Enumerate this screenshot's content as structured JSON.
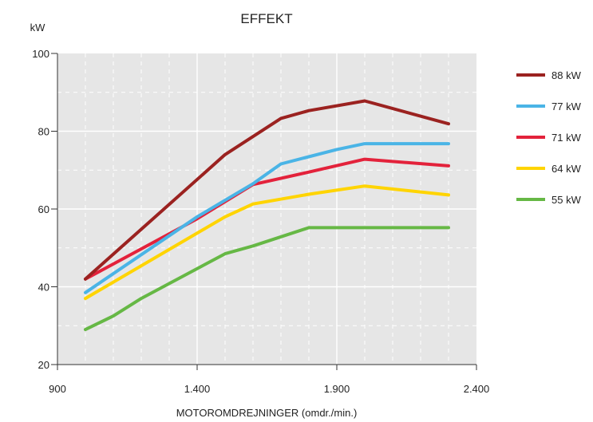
{
  "chart_data": {
    "type": "line",
    "title": "EFFEKT",
    "ylabel": "kW",
    "xlabel": "MOTOROMDREJNINGER (omdr./min.)",
    "xlim": [
      900,
      2400
    ],
    "ylim": [
      20,
      100
    ],
    "x_ticks": [
      900,
      1400,
      1900,
      2400
    ],
    "x_tick_labels": [
      "900",
      "1.400",
      "1.900",
      "2.400"
    ],
    "y_ticks": [
      20,
      40,
      60,
      80,
      100
    ],
    "y_tick_labels": [
      "20",
      "40",
      "60",
      "80",
      "100"
    ],
    "grid": true,
    "legend_position": "right",
    "series": [
      {
        "name": "88 kW",
        "color": "#9B2220",
        "points": [
          [
            1000,
            42
          ],
          [
            1500,
            74
          ],
          [
            1700,
            83.3
          ],
          [
            1800,
            85.3
          ],
          [
            2000,
            87.8
          ],
          [
            2300,
            81.9
          ]
        ]
      },
      {
        "name": "77 kW",
        "color": "#4AB4E6",
        "points": [
          [
            1000,
            38.5
          ],
          [
            1400,
            58
          ],
          [
            1600,
            66.5
          ],
          [
            1700,
            71.6
          ],
          [
            1900,
            75.3
          ],
          [
            2000,
            76.8
          ],
          [
            2300,
            76.8
          ]
        ]
      },
      {
        "name": "71 kW",
        "color": "#E3223B",
        "points": [
          [
            1000,
            42
          ],
          [
            1400,
            57.5
          ],
          [
            1600,
            66.3
          ],
          [
            1800,
            69.5
          ],
          [
            2000,
            72.8
          ],
          [
            2300,
            71.1
          ]
        ]
      },
      {
        "name": "64 kW",
        "color": "#FFD400",
        "points": [
          [
            1000,
            37
          ],
          [
            1500,
            58
          ],
          [
            1600,
            61.3
          ],
          [
            1800,
            63.8
          ],
          [
            2000,
            65.9
          ],
          [
            2300,
            63.6
          ]
        ]
      },
      {
        "name": "55 kW",
        "color": "#66B845",
        "points": [
          [
            1000,
            29
          ],
          [
            1100,
            32.5
          ],
          [
            1200,
            37
          ],
          [
            1500,
            48.5
          ],
          [
            1600,
            50.5
          ],
          [
            1800,
            55.2
          ],
          [
            2300,
            55.2
          ]
        ]
      }
    ]
  }
}
